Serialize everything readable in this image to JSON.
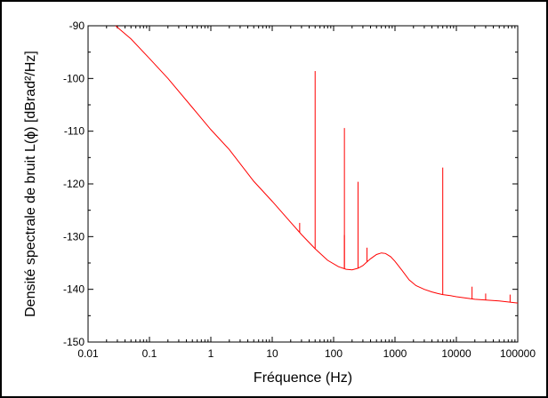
{
  "chart_data": {
    "type": "line",
    "title": "",
    "xlabel": "Fréquence (Hz)",
    "ylabel": "Densité spectrale de bruit L(ϕ) [dBrad²/Hz]",
    "xscale": "log",
    "xlim": [
      0.01,
      100000
    ],
    "ylim": [
      -150,
      -90
    ],
    "grid": false,
    "legend": "none",
    "x_ticks": [
      0.01,
      0.1,
      1,
      10,
      100,
      1000,
      10000,
      100000
    ],
    "x_tick_labels": [
      "0.01",
      "0.1",
      "1",
      "10",
      "100",
      "1000",
      "10000",
      "100000"
    ],
    "y_ticks": [
      -150,
      -140,
      -130,
      -120,
      -110,
      -100,
      -90
    ],
    "y_tick_labels": [
      "-150",
      "-140",
      "-130",
      "-120",
      "-110",
      "-100",
      "-90"
    ],
    "series": [
      {
        "color": "#ff0000",
        "x": [
          0.028,
          0.05,
          0.1,
          0.2,
          0.5,
          1,
          2,
          5,
          10,
          20,
          30,
          50,
          80,
          120,
          160,
          200,
          250,
          300,
          350,
          400,
          500,
          600,
          700,
          850,
          1000,
          1300,
          1700,
          2200,
          3000,
          4000,
          5000,
          6000,
          8000,
          10000,
          20000,
          50000,
          100000
        ],
        "y": [
          -90.0,
          -92.5,
          -96.2,
          -100.0,
          -105.5,
          -109.7,
          -113.5,
          -119.5,
          -123.3,
          -127.3,
          -129.6,
          -132.3,
          -134.5,
          -135.7,
          -136.2,
          -136.3,
          -136.0,
          -135.5,
          -134.8,
          -134.2,
          -133.4,
          -133.1,
          -133.2,
          -133.8,
          -134.7,
          -136.4,
          -138.2,
          -139.3,
          -140.0,
          -140.5,
          -140.8,
          -141.0,
          -141.2,
          -141.4,
          -141.9,
          -142.2,
          -142.6
        ]
      }
    ],
    "spikes": [
      {
        "x": 28,
        "base": -129.2,
        "peak": -127.4
      },
      {
        "x": 50,
        "base": -132.3,
        "peak": -98.6
      },
      {
        "x": 150,
        "base": -136.0,
        "peak": -109.4
      },
      {
        "x": 150,
        "base": -136.0,
        "peak": -129.7
      },
      {
        "x": 250,
        "base": -136.0,
        "peak": -119.6
      },
      {
        "x": 350,
        "base": -134.8,
        "peak": -132.1
      },
      {
        "x": 6000,
        "base": -141.0,
        "peak": -116.9
      },
      {
        "x": 18000,
        "base": -141.8,
        "peak": -139.5
      },
      {
        "x": 30000,
        "base": -142.0,
        "peak": -140.8
      },
      {
        "x": 75000,
        "base": -142.4,
        "peak": -141.0
      }
    ]
  }
}
